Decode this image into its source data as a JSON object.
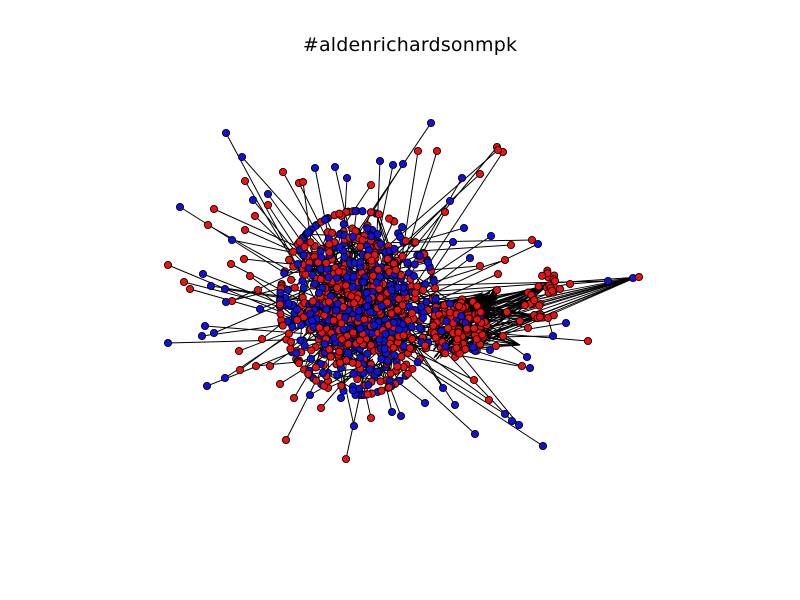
{
  "figure": {
    "title": "#aldenrichardsonmpk"
  },
  "legend": {
    "node_colors": [
      "#ee1111",
      "#1111dd"
    ],
    "edge_color": "#000000",
    "node_outline": "#000000"
  }
}
